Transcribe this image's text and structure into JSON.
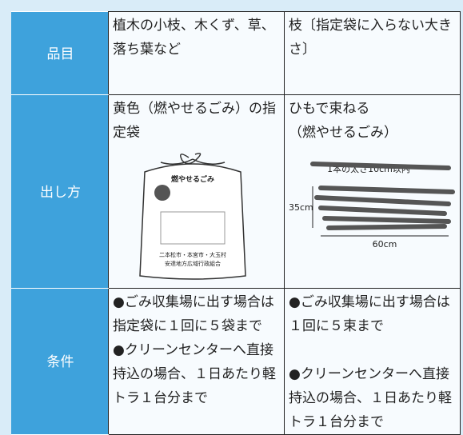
{
  "table": {
    "rows": [
      {
        "header": "品目",
        "cells": [
          [
            "植木の小枝、木くず、草、落ち葉など"
          ],
          [
            "枝〔指定袋に入らない大きさ〕"
          ]
        ]
      },
      {
        "header": "出し方",
        "cells": [
          [
            "黄色（燃やせるごみ）の指定袋"
          ],
          [
            "ひもで束ねる",
            "（燃やせるごみ）"
          ]
        ]
      },
      {
        "header": "条件",
        "cells": [
          [
            "●ごみ収集場に出す場合は指定袋に１回に５袋まで",
            "●クリーンセンターへ直接持込の場合、１日あたり軽トラ１台分まで"
          ],
          [
            "●ごみ収集場に出す場合は１回に５束まで",
            "●クリーンセンターへ直接持込の場合、１日あたり軽トラ１台分まで"
          ]
        ]
      }
    ]
  },
  "bag": {
    "title": "燃やせるごみ",
    "cities": "二本松市・本宮市・大玉村",
    "org": "安達地方広域行政組合"
  },
  "branches": {
    "thickness": "1本の太さ10cm以内",
    "height": "35cm",
    "length": "60cm"
  }
}
